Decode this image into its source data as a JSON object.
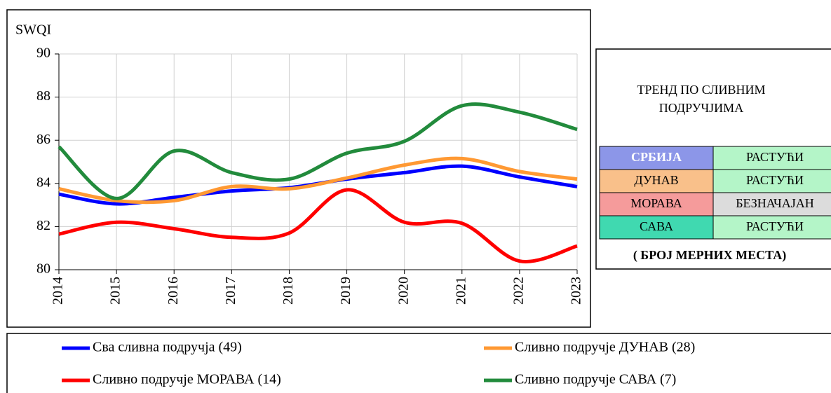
{
  "chart_data": {
    "type": "line",
    "y_label": "SWQI",
    "categories": [
      "2014",
      "2015",
      "2016",
      "2017",
      "2018",
      "2019",
      "2020",
      "2021",
      "2022",
      "2023"
    ],
    "ylim": [
      80,
      90
    ],
    "yticks": [
      80,
      82,
      84,
      86,
      88,
      90
    ],
    "grid": true,
    "series": [
      {
        "name": "Сва сливна подручја (49)",
        "color": "#0000ff",
        "values": [
          83.5,
          83.05,
          83.35,
          83.65,
          83.8,
          84.2,
          84.5,
          84.8,
          84.3,
          83.85
        ]
      },
      {
        "name": "Сливно подручје ДУНАВ (28)",
        "color": "#ff9933",
        "values": [
          83.75,
          83.2,
          83.2,
          83.85,
          83.75,
          84.25,
          84.85,
          85.15,
          84.55,
          84.2
        ]
      },
      {
        "name": "Сливно подручје МОРАВА (14)",
        "color": "#ff0000",
        "values": [
          81.65,
          82.2,
          81.9,
          81.5,
          81.7,
          83.7,
          82.2,
          82.15,
          80.4,
          81.1
        ]
      },
      {
        "name": "Сливно подручје САВА (7)",
        "color": "#228b3c",
        "values": [
          85.7,
          83.3,
          85.5,
          84.5,
          84.2,
          85.4,
          85.95,
          87.6,
          87.3,
          86.5
        ]
      }
    ]
  },
  "table": {
    "title": [
      "ТРЕНД ПО СЛИВНИМ",
      "ПОДРУЧЈИМА"
    ],
    "rows": [
      [
        "СРБИЈА",
        "РАСТУЋИ"
      ],
      [
        "ДУНАВ",
        "РАСТУЋИ"
      ],
      [
        "МОРАВА",
        "БЕЗНАЧАЈАН"
      ],
      [
        "САВА",
        "РАСТУЋИ"
      ]
    ],
    "footer": "( БРОЈ МЕРНИХ МЕСТА)"
  }
}
